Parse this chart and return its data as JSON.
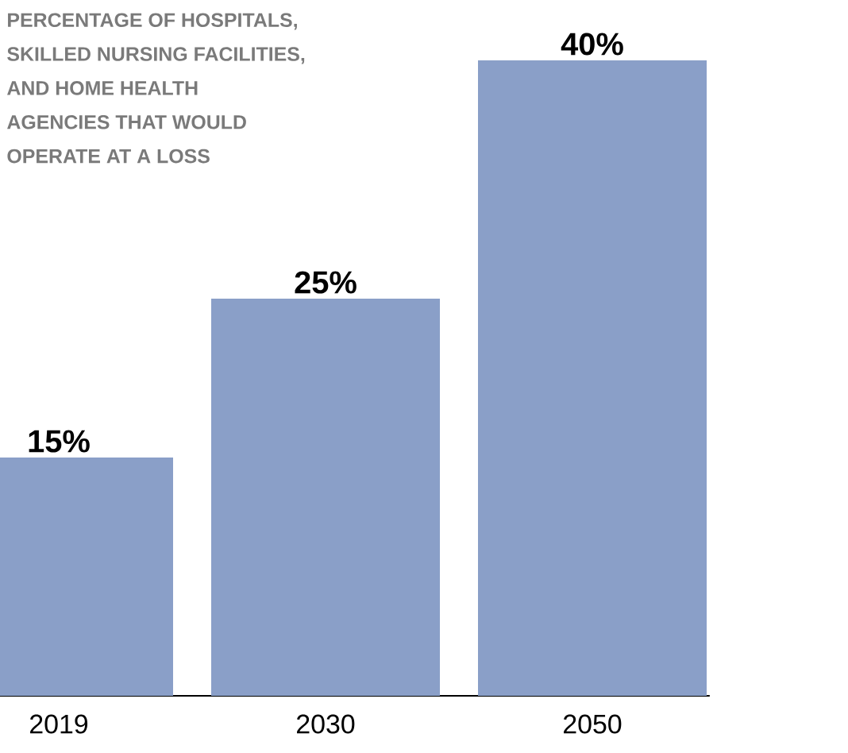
{
  "chart_data": {
    "type": "bar",
    "title": "PERCENTAGE OF HOSPITALS,\nSKILLED NURSING FACILITIES,\nAND HOME HEALTH\nAGENCIES THAT WOULD\nOPERATE AT A LOSS",
    "categories": [
      "2019",
      "2030",
      "2050"
    ],
    "values": [
      15,
      25,
      40
    ],
    "value_labels": [
      "15%",
      "25%",
      "40%"
    ],
    "color": "#8a9fc8",
    "ylim": [
      0,
      40
    ],
    "tick_labels": "x"
  }
}
